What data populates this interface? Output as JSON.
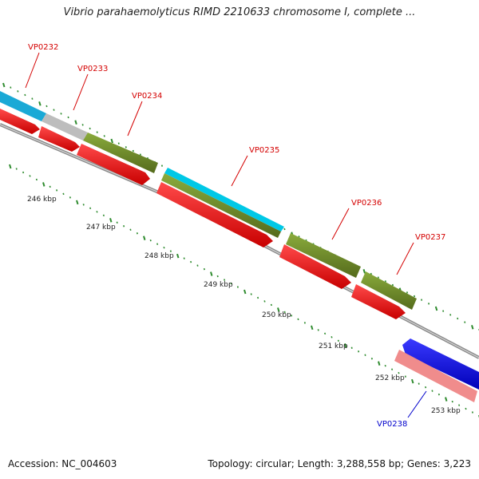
{
  "title": "Vibrio parahaemolyticus RIMD 2210633 chromosome I, complete ...",
  "footer": {
    "accession": "Accession: NC_004603",
    "summary": "Topology: circular; Length: 3,288,558 bp; Genes: 3,223"
  },
  "kbp_labels": [
    "246 kbp",
    "247 kbp",
    "248 kbp",
    "249 kbp",
    "250 kbp",
    "251 kbp",
    "252 kbp",
    "253 kbp"
  ],
  "genes": [
    {
      "id": "VP0232",
      "color": "#d40000"
    },
    {
      "id": "VP0233",
      "color": "#d40000"
    },
    {
      "id": "VP0234",
      "color": "#d40000"
    },
    {
      "id": "VP0235",
      "color": "#d40000"
    },
    {
      "id": "VP0236",
      "color": "#d40000"
    },
    {
      "id": "VP0237",
      "color": "#d40000"
    },
    {
      "id": "VP0238",
      "color": "#0000cc"
    }
  ],
  "colors": {
    "cds_red": "#ee0000",
    "green": "#6b8e23",
    "cyan": "#00c8e6",
    "gray": "#bdbdbd",
    "blue": "#0000ee",
    "pink": "#f08c8c",
    "backbone": "#888888",
    "tick": "#2e8b2e"
  }
}
